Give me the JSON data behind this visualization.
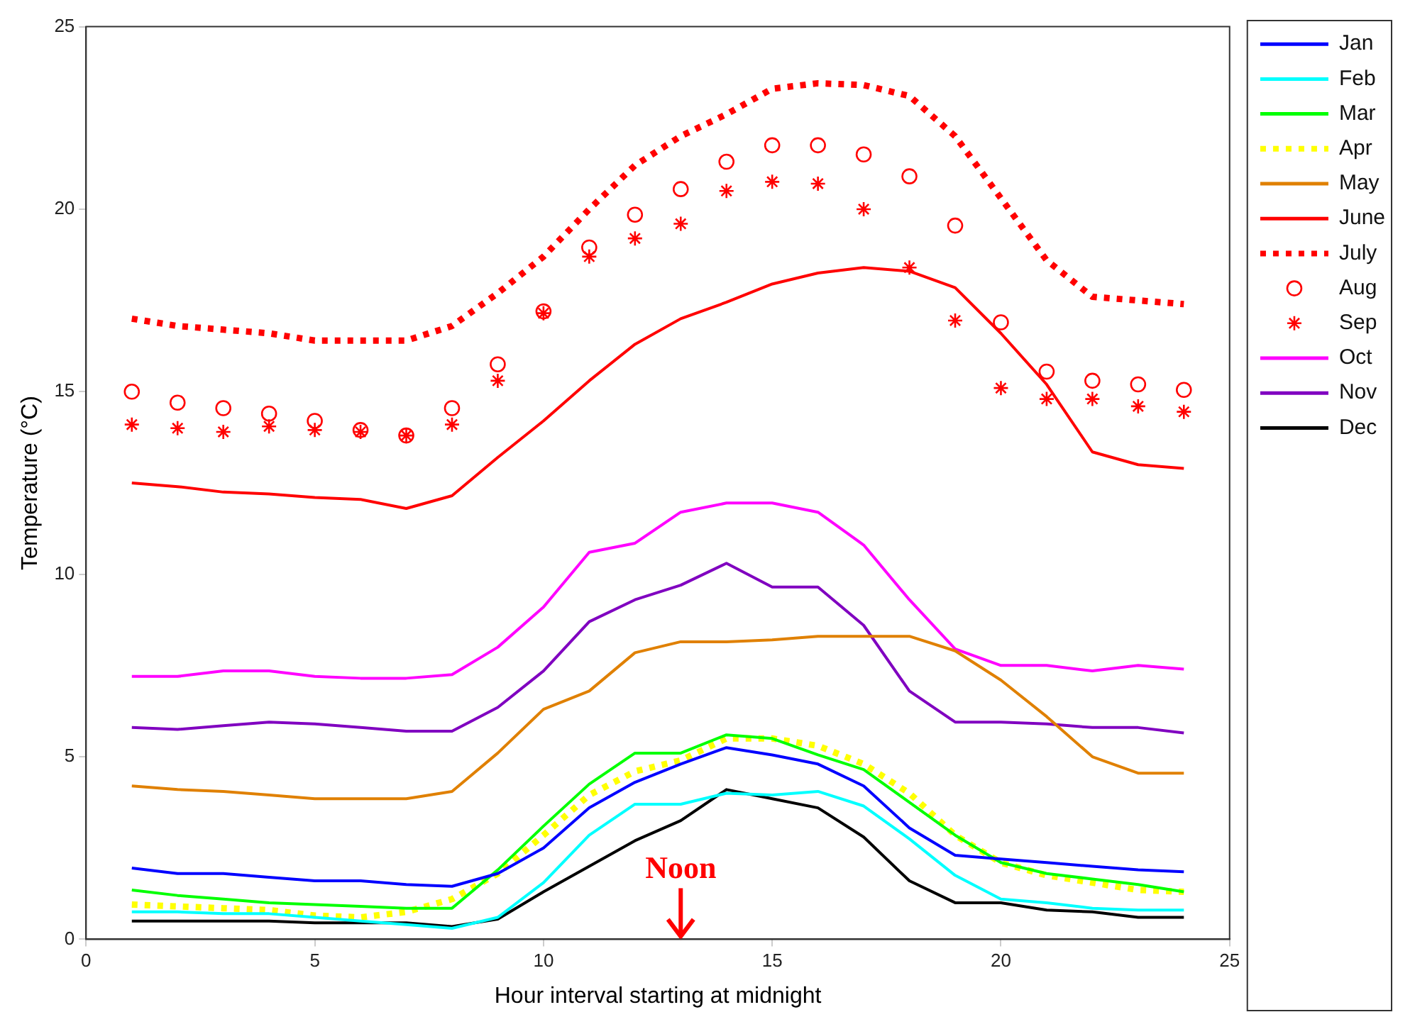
{
  "chart_data": {
    "type": "line",
    "xlabel": "Hour interval starting at midnight",
    "ylabel": "Temperature (°C)",
    "x": [
      1,
      2,
      3,
      4,
      5,
      6,
      7,
      8,
      9,
      10,
      11,
      12,
      13,
      14,
      15,
      16,
      17,
      18,
      19,
      20,
      21,
      22,
      23,
      24
    ],
    "xlim": [
      0,
      25
    ],
    "xticks": [
      0,
      5,
      10,
      15,
      20,
      25
    ],
    "ylim": [
      0,
      25
    ],
    "yticks": [
      0,
      5,
      10,
      15,
      20,
      25
    ],
    "grid": false,
    "legend": "top right",
    "marker": "none",
    "line_style": "solid",
    "annotations": [
      "Noon"
    ],
    "series": [
      {
        "name": "Jan",
        "color": "#0000ff",
        "values": [
          1.95,
          1.8,
          1.8,
          1.7,
          1.6,
          1.6,
          1.5,
          1.45,
          1.8,
          2.5,
          3.6,
          4.3,
          4.8,
          5.25,
          5.05,
          4.8,
          4.2,
          3.05,
          2.3,
          2.2,
          2.1,
          2.0,
          1.9,
          1.85
        ]
      },
      {
        "name": "Feb",
        "color": "#00ffff",
        "values": [
          0.75,
          0.75,
          0.7,
          0.7,
          0.6,
          0.5,
          0.4,
          0.3,
          0.6,
          1.55,
          2.85,
          3.7,
          3.7,
          4.0,
          3.95,
          4.05,
          3.65,
          2.75,
          1.75,
          1.1,
          1.0,
          0.85,
          0.8,
          0.8
        ]
      },
      {
        "name": "Mar",
        "color": "#00ff00",
        "values": [
          1.35,
          1.2,
          1.1,
          1.0,
          0.95,
          0.9,
          0.85,
          0.85,
          1.9,
          3.1,
          4.25,
          5.1,
          5.1,
          5.6,
          5.5,
          5.05,
          4.65,
          3.75,
          2.85,
          2.1,
          1.8,
          1.65,
          1.5,
          1.3
        ]
      },
      {
        "name": "Apr",
        "color": "#ffff00",
        "line_style": "dotted",
        "values": [
          0.95,
          0.9,
          0.85,
          0.8,
          0.65,
          0.6,
          0.75,
          1.1,
          1.8,
          2.85,
          3.95,
          4.6,
          4.9,
          5.5,
          5.5,
          5.3,
          4.8,
          4.0,
          2.85,
          2.1,
          1.75,
          1.55,
          1.35,
          1.3
        ]
      },
      {
        "name": "May",
        "color": "#e08000",
        "values": [
          4.2,
          4.1,
          4.05,
          3.95,
          3.85,
          3.85,
          3.85,
          4.05,
          5.1,
          6.3,
          6.8,
          7.85,
          8.15,
          8.15,
          8.2,
          8.3,
          8.3,
          8.3,
          7.9,
          7.1,
          6.1,
          5.0,
          4.55,
          4.55
        ]
      },
      {
        "name": "June",
        "color": "#ff0000",
        "values": [
          12.5,
          12.4,
          12.25,
          12.2,
          12.1,
          12.05,
          11.8,
          12.15,
          13.2,
          14.2,
          15.3,
          16.3,
          17.0,
          17.45,
          17.95,
          18.25,
          18.4,
          18.3,
          17.85,
          16.6,
          15.2,
          13.35,
          13.0,
          12.9
        ]
      },
      {
        "name": "July",
        "color": "#ff0000",
        "line_style": "dotted",
        "values": [
          17.0,
          16.8,
          16.7,
          16.6,
          16.4,
          16.4,
          16.4,
          16.8,
          17.7,
          18.7,
          20.0,
          21.2,
          22.0,
          22.6,
          23.3,
          23.45,
          23.4,
          23.1,
          22.0,
          20.3,
          18.6,
          17.6,
          17.5,
          17.4
        ]
      },
      {
        "name": "Aug",
        "color": "#ff0000",
        "type": "scatter",
        "marker": "circle",
        "values": [
          15.0,
          14.7,
          14.55,
          14.4,
          14.2,
          13.95,
          13.8,
          14.55,
          15.75,
          17.2,
          18.95,
          19.85,
          20.55,
          21.3,
          21.75,
          21.75,
          21.5,
          20.9,
          19.55,
          16.9,
          15.55,
          15.3,
          15.2,
          15.05
        ]
      },
      {
        "name": "Sep",
        "color": "#ff0000",
        "type": "scatter",
        "marker": "cross",
        "values": [
          14.1,
          14.0,
          13.9,
          14.05,
          13.95,
          13.9,
          13.8,
          14.1,
          15.3,
          17.15,
          18.7,
          19.2,
          19.6,
          20.5,
          20.75,
          20.7,
          20.0,
          18.4,
          16.95,
          15.1,
          14.8,
          14.8,
          14.6,
          14.45
        ]
      },
      {
        "name": "Oct",
        "color": "#ff00ff",
        "values": [
          7.2,
          7.2,
          7.35,
          7.35,
          7.2,
          7.15,
          7.15,
          7.25,
          8.0,
          9.1,
          10.6,
          10.85,
          11.7,
          11.95,
          11.95,
          11.7,
          10.8,
          9.3,
          7.95,
          7.5,
          7.5,
          7.35,
          7.5,
          7.4
        ]
      },
      {
        "name": "Nov",
        "color": "#8000c0",
        "values": [
          5.8,
          5.75,
          5.85,
          5.95,
          5.9,
          5.8,
          5.7,
          5.7,
          6.35,
          7.35,
          8.7,
          9.3,
          9.7,
          10.3,
          9.65,
          9.65,
          8.6,
          6.8,
          5.95,
          5.95,
          5.9,
          5.8,
          5.8,
          5.65
        ]
      },
      {
        "name": "Dec",
        "color": "#000000",
        "values": [
          0.5,
          0.5,
          0.5,
          0.5,
          0.45,
          0.45,
          0.45,
          0.35,
          0.55,
          1.3,
          2.0,
          2.7,
          3.25,
          4.1,
          3.85,
          3.6,
          2.8,
          1.6,
          1.0,
          1.0,
          0.8,
          0.75,
          0.6,
          0.6
        ]
      }
    ]
  }
}
